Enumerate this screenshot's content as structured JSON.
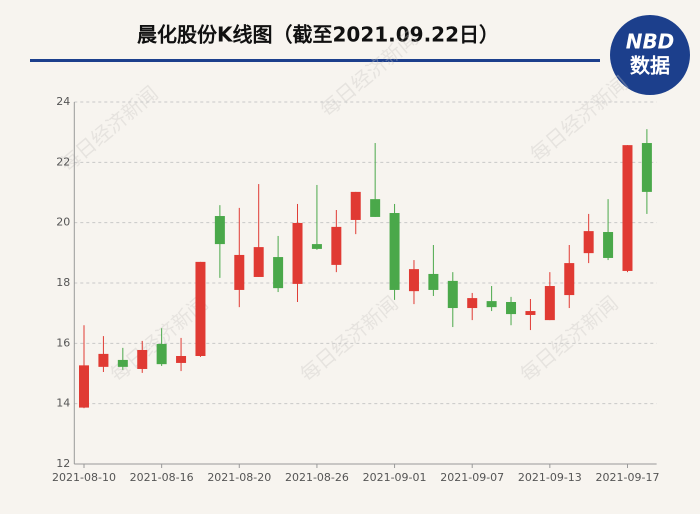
{
  "chart_data": {
    "type": "candlestick",
    "title": "晨化股份K线图（截至2021.09.22日）",
    "logo": {
      "top": "NBD",
      "bottom": "数据"
    },
    "watermark": "每日经济新闻",
    "categories": [
      "2021-08-10",
      null,
      null,
      null,
      "2021-08-16",
      null,
      null,
      null,
      "2021-08-20",
      null,
      null,
      null,
      "2021-08-26",
      null,
      null,
      null,
      "2021-09-01",
      null,
      null,
      null,
      "2021-09-07",
      null,
      null,
      null,
      "2021-09-13",
      null,
      null,
      null,
      "2021-09-17",
      null
    ],
    "series": [
      {
        "name": "open",
        "values": [
          13.87,
          15.22,
          15.45,
          15.15,
          15.98,
          15.35,
          15.58,
          20.22,
          17.77,
          18.2,
          18.86,
          17.97,
          19.29,
          18.6,
          20.09,
          20.78,
          20.32,
          17.73,
          18.3,
          18.07,
          17.17,
          17.4,
          17.37,
          16.94,
          16.77,
          17.6,
          18.99,
          19.69,
          18.4,
          22.64
        ]
      },
      {
        "name": "high",
        "values": [
          16.6,
          16.24,
          15.85,
          16.08,
          16.5,
          16.18,
          18.7,
          20.58,
          20.49,
          21.28,
          19.56,
          20.62,
          21.25,
          20.42,
          21.02,
          22.64,
          20.62,
          18.76,
          19.26,
          18.36,
          17.67,
          17.9,
          17.54,
          17.47,
          18.36,
          19.26,
          20.29,
          20.78,
          22.57,
          23.1
        ]
      },
      {
        "name": "low",
        "values": [
          13.85,
          15.05,
          15.12,
          15.02,
          15.25,
          15.08,
          15.55,
          18.17,
          17.2,
          18.2,
          17.7,
          17.37,
          19.1,
          18.36,
          19.62,
          20.19,
          17.44,
          17.3,
          17.57,
          16.54,
          16.77,
          17.07,
          16.6,
          16.44,
          16.77,
          17.17,
          18.66,
          18.76,
          18.36,
          20.29
        ]
      },
      {
        "name": "close",
        "values": [
          15.27,
          15.65,
          15.22,
          15.78,
          15.31,
          15.58,
          18.7,
          19.29,
          18.93,
          19.19,
          17.83,
          19.99,
          19.13,
          19.86,
          21.02,
          20.19,
          17.77,
          18.46,
          17.77,
          17.17,
          17.5,
          17.2,
          16.97,
          17.07,
          17.9,
          18.66,
          19.72,
          18.83,
          22.57,
          21.02
        ]
      }
    ],
    "up_color": "#e03a33",
    "down_color": "#4aa84a",
    "ylim": [
      12,
      24
    ],
    "yticks": [
      12,
      14,
      16,
      18,
      20,
      22,
      24
    ],
    "grid": true
  }
}
